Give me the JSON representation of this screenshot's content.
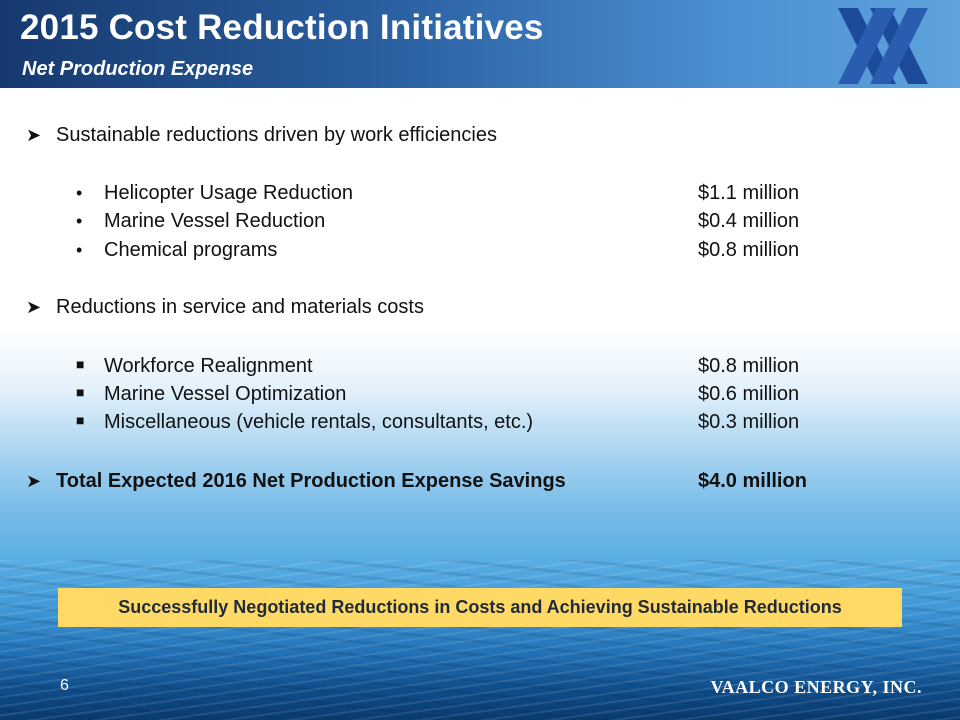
{
  "header": {
    "title": "2015 Cost Reduction Initiatives",
    "subtitle": "Net Production Expense"
  },
  "sections": [
    {
      "heading": "Sustainable reductions driven by work efficiencies",
      "marker_heading": "arrow-bullet-icon",
      "marker_items": "round-bullet-icon",
      "items": [
        {
          "label": "Helicopter Usage Reduction",
          "value": "$1.1 million"
        },
        {
          "label": "Marine Vessel Reduction",
          "value": "$0.4 million"
        },
        {
          "label": "Chemical programs",
          "value": "$0.8 million"
        }
      ]
    },
    {
      "heading": "Reductions in service and materials costs",
      "marker_heading": "arrow-bullet-icon",
      "marker_items": "square-bullet-icon",
      "items": [
        {
          "label": "Workforce Realignment",
          "value": "$0.8 million"
        },
        {
          "label": "Marine Vessel Optimization",
          "value": "$0.6 million"
        },
        {
          "label": "Miscellaneous (vehicle rentals, consultants, etc.)",
          "value": "$0.3 million"
        }
      ]
    }
  ],
  "total": {
    "label": "Total Expected 2016 Net Production Expense Savings",
    "value": "$4.0 million"
  },
  "banner": "Successfully Negotiated Reductions in Costs and Achieving Sustainable Reductions",
  "footer": {
    "page_number": "6",
    "company": "VAALCO ENERGY, INC."
  },
  "colors": {
    "header_dark": "#16396e",
    "header_light": "#5ea3dd",
    "logo": "#1e4a9a",
    "banner": "#ffd966"
  }
}
